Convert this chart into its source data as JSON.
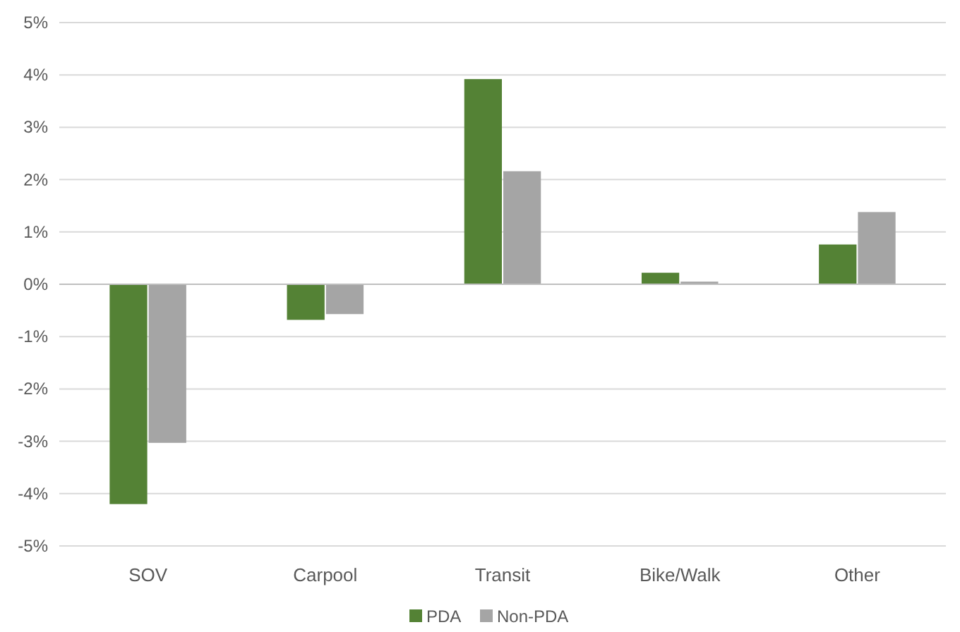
{
  "chart_data": {
    "type": "bar",
    "categories": [
      "SOV",
      "Carpool",
      "Transit",
      "Bike/Walk",
      "Other"
    ],
    "series": [
      {
        "name": "PDA",
        "color": "#548235",
        "values": [
          -4.2,
          -0.68,
          3.92,
          0.22,
          0.76
        ]
      },
      {
        "name": "Non-PDA",
        "color": "#a5a5a5",
        "values": [
          -3.03,
          -0.57,
          2.16,
          0.05,
          1.38
        ]
      }
    ],
    "ylim": [
      -5,
      5
    ],
    "yticks": [
      {
        "value": -5,
        "label": "-5%"
      },
      {
        "value": -4,
        "label": "-4%"
      },
      {
        "value": -3,
        "label": "-3%"
      },
      {
        "value": -2,
        "label": "-2%"
      },
      {
        "value": -1,
        "label": "-1%"
      },
      {
        "value": 0,
        "label": "0%"
      },
      {
        "value": 1,
        "label": "1%"
      },
      {
        "value": 2,
        "label": "2%"
      },
      {
        "value": 3,
        "label": "3%"
      },
      {
        "value": 4,
        "label": "4%"
      },
      {
        "value": 5,
        "label": "5%"
      }
    ],
    "grid": "y",
    "legend": "bottom"
  }
}
